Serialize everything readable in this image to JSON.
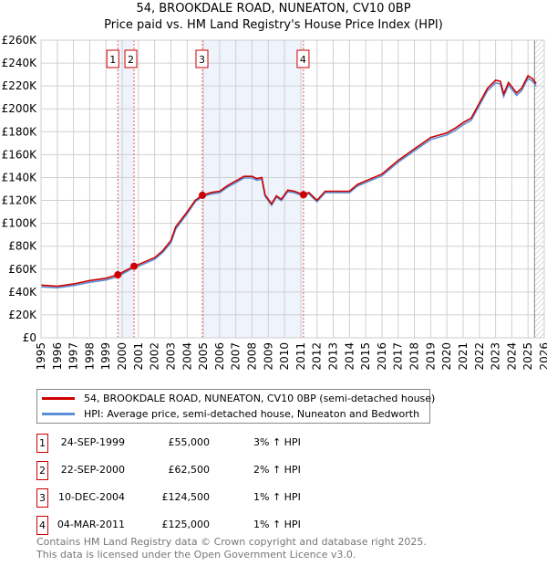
{
  "title_line1": "54, BROOKDALE ROAD, NUNEATON, CV10 0BP",
  "title_line2": "Price paid vs. HM Land Registry's House Price Index (HPI)",
  "chart_data": {
    "type": "line",
    "title": "54, BROOKDALE ROAD, NUNEATON, CV10 0BP — Price paid vs. HM Land Registry's House Price Index (HPI)",
    "xlim": [
      1995,
      2026
    ],
    "ylim": [
      0,
      260000
    ],
    "x_ticks": [
      "1995",
      "1996",
      "1997",
      "1998",
      "1999",
      "2000",
      "2001",
      "2002",
      "2003",
      "2004",
      "2005",
      "2006",
      "2007",
      "2008",
      "2009",
      "2010",
      "2011",
      "2012",
      "2013",
      "2014",
      "2015",
      "2016",
      "2017",
      "2018",
      "2019",
      "2020",
      "2021",
      "2022",
      "2023",
      "2024",
      "2025",
      "2026"
    ],
    "y_ticks": [
      "£0",
      "£20K",
      "£40K",
      "£60K",
      "£80K",
      "£100K",
      "£120K",
      "£140K",
      "£160K",
      "£180K",
      "£200K",
      "£220K",
      "£240K",
      "£260K"
    ],
    "grid": true,
    "series": [
      {
        "name": "54, BROOKDALE ROAD, NUNEATON, CV10 0BP (semi-detached house)",
        "color": "#cc0000",
        "x": [
          1995,
          1996,
          1997,
          1998,
          1999,
          1999.73,
          2000.73,
          2001,
          2002,
          2002.5,
          2003,
          2003.3,
          2004,
          2004.5,
          2004.94,
          2005.5,
          2006,
          2006.5,
          2007,
          2007.5,
          2008,
          2008.3,
          2008.6,
          2008.8,
          2009.2,
          2009.5,
          2009.8,
          2010.2,
          2010.6,
          2011.17,
          2011.5,
          2012,
          2012.5,
          2013,
          2014,
          2014.5,
          2015,
          2016,
          2017,
          2018,
          2019,
          2020,
          2020.5,
          2021,
          2021.5,
          2022,
          2022.5,
          2023,
          2023.3,
          2023.5,
          2023.8,
          2024.3,
          2024.6,
          2025,
          2025.3,
          2025.5
        ],
        "y": [
          46000,
          45000,
          47000,
          50000,
          52000,
          55000,
          62500,
          64000,
          70000,
          76000,
          85000,
          97000,
          110000,
          120000,
          124500,
          127000,
          128000,
          133000,
          137000,
          141000,
          141000,
          139000,
          140000,
          125000,
          117000,
          124000,
          121000,
          129000,
          128000,
          125000,
          127000,
          120000,
          128000,
          128000,
          128000,
          134000,
          137000,
          143000,
          155000,
          165000,
          175000,
          179000,
          183000,
          188000,
          192000,
          205000,
          218000,
          225000,
          224000,
          213000,
          223000,
          214000,
          218000,
          229000,
          226000,
          222000
        ]
      },
      {
        "name": "HPI: Average price, semi-detached house, Nuneaton and Bedworth",
        "color": "#5b8fd6",
        "x": [
          1995,
          1996,
          1997,
          1998,
          1999,
          1999.73,
          2000.73,
          2001,
          2002,
          2002.5,
          2003,
          2003.3,
          2004,
          2004.5,
          2004.94,
          2005.5,
          2006,
          2006.5,
          2007,
          2007.5,
          2008,
          2008.3,
          2008.6,
          2008.8,
          2009.2,
          2009.5,
          2009.8,
          2010.2,
          2010.6,
          2011.17,
          2011.5,
          2012,
          2012.5,
          2013,
          2014,
          2014.5,
          2015,
          2016,
          2017,
          2018,
          2019,
          2020,
          2020.5,
          2021,
          2021.5,
          2022,
          2022.5,
          2023,
          2023.3,
          2023.5,
          2023.8,
          2024.3,
          2024.6,
          2025,
          2025.3,
          2025.5
        ],
        "y": [
          44500,
          43700,
          45600,
          48500,
          50500,
          53400,
          61300,
          62500,
          68500,
          74500,
          83000,
          95000,
          108500,
          118800,
          123300,
          125700,
          126700,
          131700,
          135600,
          139600,
          139600,
          137600,
          138600,
          123700,
          115800,
          122800,
          119800,
          127700,
          126700,
          123800,
          125700,
          118800,
          126700,
          126700,
          126700,
          132600,
          135600,
          141500,
          153400,
          163300,
          173200,
          177200,
          181100,
          186100,
          190000,
          203000,
          215800,
          222700,
          221700,
          210800,
          220700,
          211800,
          215800,
          226700,
          223700,
          219800
        ]
      }
    ],
    "sales": [
      {
        "label": "1",
        "x": 1999.73,
        "y": 55000
      },
      {
        "label": "2",
        "x": 2000.73,
        "y": 62500
      },
      {
        "label": "3",
        "x": 2004.94,
        "y": 124500
      },
      {
        "label": "4",
        "x": 2011.17,
        "y": 125000
      }
    ],
    "shaded_ranges": [
      [
        1999.73,
        2000.73
      ],
      [
        2004.94,
        2011.17
      ]
    ],
    "hatched_from": 2025.4,
    "legend_position": "below"
  },
  "legend": [
    {
      "label": "54, BROOKDALE ROAD, NUNEATON, CV10 0BP (semi-detached house)",
      "color": "#cc0000"
    },
    {
      "label": "HPI: Average price, semi-detached house, Nuneaton and Bedworth",
      "color": "#5b8fd6"
    }
  ],
  "transactions": [
    {
      "num": "1",
      "date": "24-SEP-1999",
      "price": "£55,000",
      "hpi": "3% ↑ HPI"
    },
    {
      "num": "2",
      "date": "22-SEP-2000",
      "price": "£62,500",
      "hpi": "2% ↑ HPI"
    },
    {
      "num": "3",
      "date": "10-DEC-2004",
      "price": "£124,500",
      "hpi": "1% ↑ HPI"
    },
    {
      "num": "4",
      "date": "04-MAR-2011",
      "price": "£125,000",
      "hpi": "1% ↑ HPI"
    }
  ],
  "footer_line1": "Contains HM Land Registry data © Crown copyright and database right 2025.",
  "footer_line2": "This data is licensed under the Open Government Licence v3.0."
}
